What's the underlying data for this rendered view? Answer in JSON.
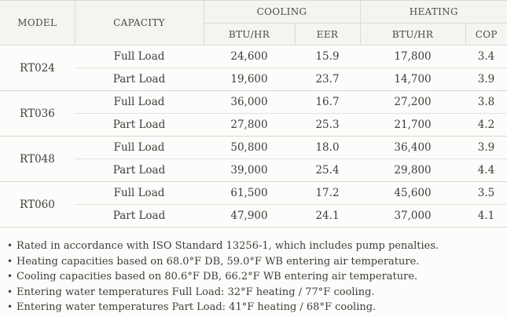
{
  "colors": {
    "page_background": "#fcfcfa",
    "header_background": "#f4f4f1",
    "border": "#dbdad7",
    "group_divider": "#d6d5d2",
    "inner_divider": "#e2e1de",
    "text": "#3e3d3a",
    "header_text": "#4b4a47"
  },
  "table": {
    "headers": {
      "model": "MODEL",
      "capacity": "CAPACITY",
      "cooling": "COOLING",
      "heating": "HEATING",
      "cooling_btu": "BTU/HR",
      "cooling_eer": "EER",
      "heating_btu": "BTU/HR",
      "heating_cop": "COP"
    },
    "groups": [
      {
        "model": "RT024",
        "rows": [
          {
            "capacity": "Full Load",
            "cooling_btu": "24,600",
            "eer": "15.9",
            "heating_btu": "17,800",
            "cop": "3.4"
          },
          {
            "capacity": "Part Load",
            "cooling_btu": "19,600",
            "eer": "23.7",
            "heating_btu": "14,700",
            "cop": "3.9"
          }
        ]
      },
      {
        "model": "RT036",
        "rows": [
          {
            "capacity": "Full Load",
            "cooling_btu": "36,000",
            "eer": "16.7",
            "heating_btu": "27,200",
            "cop": "3.8"
          },
          {
            "capacity": "Part Load",
            "cooling_btu": "27,800",
            "eer": "25.3",
            "heating_btu": "21,700",
            "cop": "4.2"
          }
        ]
      },
      {
        "model": "RT048",
        "rows": [
          {
            "capacity": "Full Load",
            "cooling_btu": "50,800",
            "eer": "18.0",
            "heating_btu": "36,400",
            "cop": "3.9"
          },
          {
            "capacity": "Part Load",
            "cooling_btu": "39,000",
            "eer": "25.4",
            "heating_btu": "29,800",
            "cop": "4.4"
          }
        ]
      },
      {
        "model": "RT060",
        "rows": [
          {
            "capacity": "Full Load",
            "cooling_btu": "61,500",
            "eer": "17.2",
            "heating_btu": "45,600",
            "cop": "3.5"
          },
          {
            "capacity": "Part Load",
            "cooling_btu": "47,900",
            "eer": "24.1",
            "heating_btu": "37,000",
            "cop": "4.1"
          }
        ]
      }
    ]
  },
  "footnotes": [
    "Rated in accordance with ISO Standard 13256-1, which includes pump penalties.",
    "Heating capacities based on 68.0°F DB, 59.0°F WB entering air temperature.",
    "Cooling capacities based on 80.6°F DB, 66.2°F WB entering air temperature.",
    "Entering water temperatures Full Load: 32°F heating / 77°F cooling.",
    "Entering water temperatures Part Load: 41°F heating / 68°F cooling."
  ]
}
